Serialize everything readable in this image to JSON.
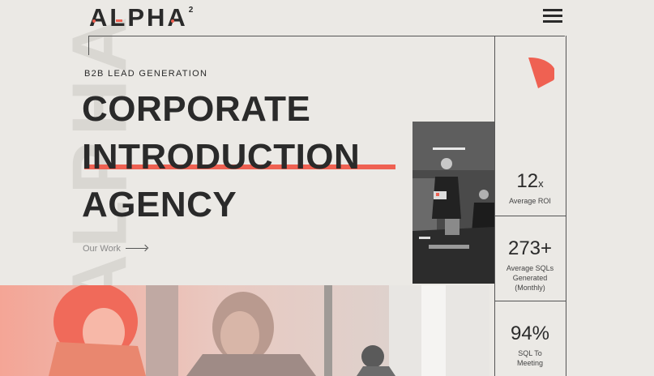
{
  "brand": {
    "logo_text": "ALPHA",
    "logo_sup": "2",
    "watermark": "ALPHA"
  },
  "nav": {
    "menu_icon": "hamburger-icon"
  },
  "hero": {
    "eyebrow": "B2B LEAD GENERATION",
    "line1": "CORPORATE",
    "line2": "INTRODUCTION",
    "line3": "AGENCY",
    "cta_label": "Our Work"
  },
  "stats": [
    {
      "value": "12",
      "suffix": "x",
      "label": "Average ROI"
    },
    {
      "value": "273+",
      "suffix": "",
      "label": "Average SQLs Generated (Monthly)"
    },
    {
      "value": "94%",
      "suffix": "",
      "label": "SQL To Meeting"
    }
  ],
  "colors": {
    "accent": "#ef6152",
    "background": "#ebe9e5",
    "text": "#2a2a2a"
  }
}
